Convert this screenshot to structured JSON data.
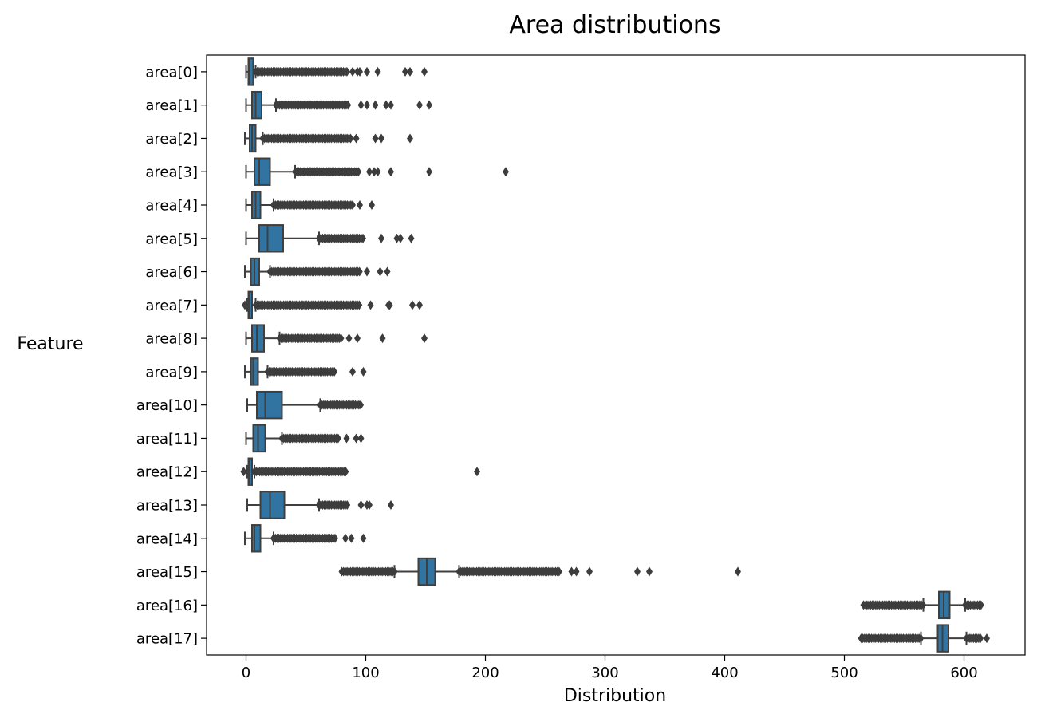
{
  "chart_data": {
    "type": "box",
    "orientation": "horizontal",
    "title": "Area distributions",
    "xlabel": "Distribution",
    "ylabel": "Feature",
    "xlim": [
      -33,
      651
    ],
    "xticks": [
      0,
      100,
      200,
      300,
      400,
      500,
      600
    ],
    "grid": false,
    "box_color": "#3274a1",
    "edge_color": "#3f3f3f",
    "series": [
      {
        "label": "area[0]",
        "whislo": 0,
        "q1": 2,
        "median": 3,
        "q3": 6,
        "whishi": 8,
        "flier_lo": [],
        "flier_hi_range": [
          8,
          85
        ],
        "flier_hi_extra": [
          89,
          93,
          95,
          101,
          110,
          133,
          137,
          149
        ]
      },
      {
        "label": "area[1]",
        "whislo": 0,
        "q1": 5,
        "median": 8,
        "q3": 13,
        "whishi": 25,
        "flier_lo": [],
        "flier_hi_range": [
          25,
          86
        ],
        "flier_hi_extra": [
          96,
          101,
          108,
          117,
          121,
          145,
          153
        ]
      },
      {
        "label": "area[2]",
        "whislo": -1,
        "q1": 3,
        "median": 5,
        "q3": 8,
        "whishi": 14,
        "flier_lo": [],
        "flier_hi_range": [
          14,
          88
        ],
        "flier_hi_extra": [
          92,
          108,
          113,
          137
        ]
      },
      {
        "label": "area[3]",
        "whislo": 0,
        "q1": 7,
        "median": 11,
        "q3": 20,
        "whishi": 41,
        "flier_lo": [],
        "flier_hi_range": [
          41,
          95
        ],
        "flier_hi_extra": [
          103,
          107,
          110,
          121,
          153,
          217
        ]
      },
      {
        "label": "area[4]",
        "whislo": 0,
        "q1": 5,
        "median": 8,
        "q3": 12,
        "whishi": 23,
        "flier_lo": [],
        "flier_hi_range": [
          23,
          90
        ],
        "flier_hi_extra": [
          95,
          105
        ]
      },
      {
        "label": "area[5]",
        "whislo": 0,
        "q1": 11,
        "median": 18,
        "q3": 31,
        "whishi": 61,
        "flier_lo": [],
        "flier_hi_range": [
          61,
          98
        ],
        "flier_hi_extra": [
          113,
          126,
          129,
          138
        ]
      },
      {
        "label": "area[6]",
        "whislo": -1,
        "q1": 4,
        "median": 7,
        "q3": 11,
        "whishi": 20,
        "flier_lo": [],
        "flier_hi_range": [
          20,
          96
        ],
        "flier_hi_extra": [
          101,
          112,
          118
        ]
      },
      {
        "label": "area[7]",
        "whislo": 1,
        "q1": 2,
        "median": 3,
        "q3": 5,
        "whishi": 8,
        "flier_lo": [
          -1
        ],
        "flier_hi_range": [
          8,
          95
        ],
        "flier_hi_extra": [
          104,
          119,
          120,
          139,
          145
        ]
      },
      {
        "label": "area[8]",
        "whislo": 0,
        "q1": 5,
        "median": 9,
        "q3": 15,
        "whishi": 28,
        "flier_lo": [],
        "flier_hi_range": [
          28,
          80
        ],
        "flier_hi_extra": [
          86,
          93,
          114,
          149
        ]
      },
      {
        "label": "area[9]",
        "whislo": -1,
        "q1": 4,
        "median": 6,
        "q3": 10,
        "whishi": 18,
        "flier_lo": [],
        "flier_hi_range": [
          18,
          74
        ],
        "flier_hi_extra": [
          89,
          98
        ]
      },
      {
        "label": "area[10]",
        "whislo": 1,
        "q1": 9,
        "median": 16,
        "q3": 30,
        "whishi": 62,
        "flier_lo": [],
        "flier_hi_range": [
          62,
          97
        ],
        "flier_hi_extra": []
      },
      {
        "label": "area[11]",
        "whislo": 0,
        "q1": 6,
        "median": 10,
        "q3": 16,
        "whishi": 30,
        "flier_lo": [],
        "flier_hi_range": [
          30,
          77
        ],
        "flier_hi_extra": [
          84,
          92,
          96
        ]
      },
      {
        "label": "area[12]",
        "whislo": 1,
        "q1": 2,
        "median": 3,
        "q3": 5,
        "whishi": 7,
        "flier_lo": [
          -2,
          -1
        ],
        "flier_hi_range": [
          7,
          84
        ],
        "flier_hi_extra": [
          193
        ]
      },
      {
        "label": "area[13]",
        "whislo": 1,
        "q1": 12,
        "median": 20,
        "q3": 32,
        "whishi": 61,
        "flier_lo": [],
        "flier_hi_range": [
          61,
          85
        ],
        "flier_hi_extra": [
          96,
          101,
          103,
          121
        ]
      },
      {
        "label": "area[14]",
        "whislo": -1,
        "q1": 5,
        "median": 7,
        "q3": 12,
        "whishi": 23,
        "flier_lo": [],
        "flier_hi_range": [
          23,
          75
        ],
        "flier_hi_extra": [
          83,
          88,
          98
        ]
      },
      {
        "label": "area[15]",
        "whislo": 124,
        "q1": 144,
        "median": 151,
        "q3": 158,
        "whishi": 178,
        "flier_lo": [
          80,
          124
        ],
        "flier_hi_range": [
          178,
          262
        ],
        "flier_hi_extra": [
          272,
          276,
          287,
          327,
          337,
          411
        ]
      },
      {
        "label": "area[16]",
        "whislo": 566,
        "q1": 579,
        "median": 583,
        "q3": 588,
        "whishi": 601,
        "flier_lo": [
          516,
          566
        ],
        "flier_hi_range": [
          601,
          615
        ],
        "flier_hi_extra": []
      },
      {
        "label": "area[17]",
        "whislo": 564,
        "q1": 578,
        "median": 582,
        "q3": 587,
        "whishi": 602,
        "flier_lo": [
          514,
          564
        ],
        "flier_hi_range": [
          602,
          614
        ],
        "flier_hi_extra": [
          619
        ]
      }
    ]
  }
}
